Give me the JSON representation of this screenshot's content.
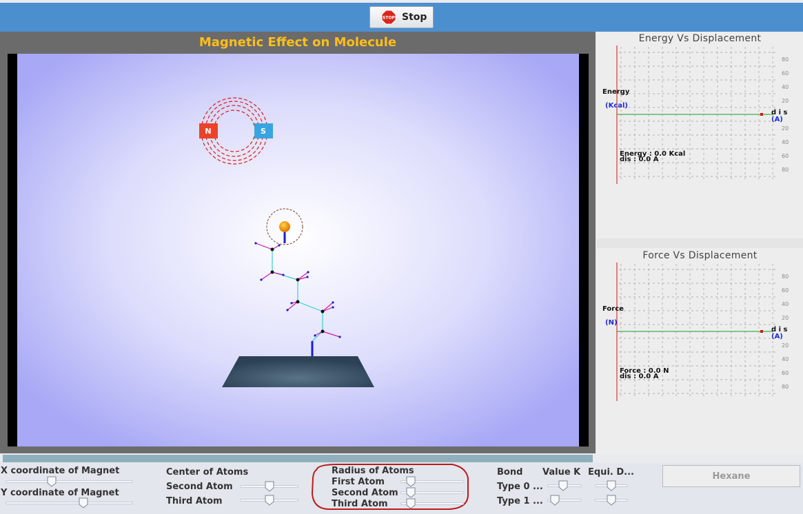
{
  "toolbar": {
    "stop_label": "Stop",
    "stop_sign_text": "STOP"
  },
  "simulation": {
    "title": "Magnetic Effect on Molecule",
    "magnet_north": "N",
    "magnet_south": "S"
  },
  "energy_graph": {
    "title": "Energy Vs Displacement",
    "ylabel": "Energy",
    "yunit": "(Kcal)",
    "xlabel": "d i s",
    "xunit": "(A)",
    "readout_value": "Energy : 0.0 Kcal",
    "readout_dis": "dis : 0.0 A",
    "ticks": [
      "80",
      "60",
      "40",
      "20",
      "20",
      "40",
      "60",
      "80"
    ]
  },
  "force_graph": {
    "title": "Force Vs Displacement",
    "ylabel": "Force",
    "yunit": "(N)",
    "xlabel": "d i s",
    "xunit": "(A)",
    "readout_value": "Force : 0.0 N",
    "readout_dis": "dis : 0.0 A",
    "ticks": [
      "80",
      "60",
      "40",
      "20",
      "20",
      "40",
      "60",
      "80"
    ]
  },
  "controls": {
    "x_magnet": {
      "label": "X coordinate of Magnet",
      "value": 0.35
    },
    "y_magnet": {
      "label": "Y coordinate of Magnet",
      "value": 0.62
    },
    "center_atoms": {
      "label": "Center of Atoms",
      "second_label": "Second Atom",
      "second_value": 0.5,
      "third_label": "Third Atom",
      "third_value": 0.5
    },
    "radius_atoms": {
      "label": "Radius of Atoms",
      "first_label": "First Atom",
      "first_value": 0.1,
      "second_label": "Second Atom",
      "second_value": 0.1,
      "third_label": "Third Atom",
      "third_value": 0.1
    },
    "bond": {
      "label": "Bond",
      "value_k_label": "Value K",
      "equi_label": "Equi. D...",
      "type0_label": "Type 0 ...",
      "type1_label": "Type 1 ...",
      "type0_k": 0.45,
      "type0_d": 0.5,
      "type1_k": 0.1,
      "type1_d": 0.5
    },
    "molecule_button": "Hexane"
  },
  "colors": {
    "accent": "#4b8fce",
    "title": "#ffbf1a",
    "highlight": "#b81c1c"
  }
}
